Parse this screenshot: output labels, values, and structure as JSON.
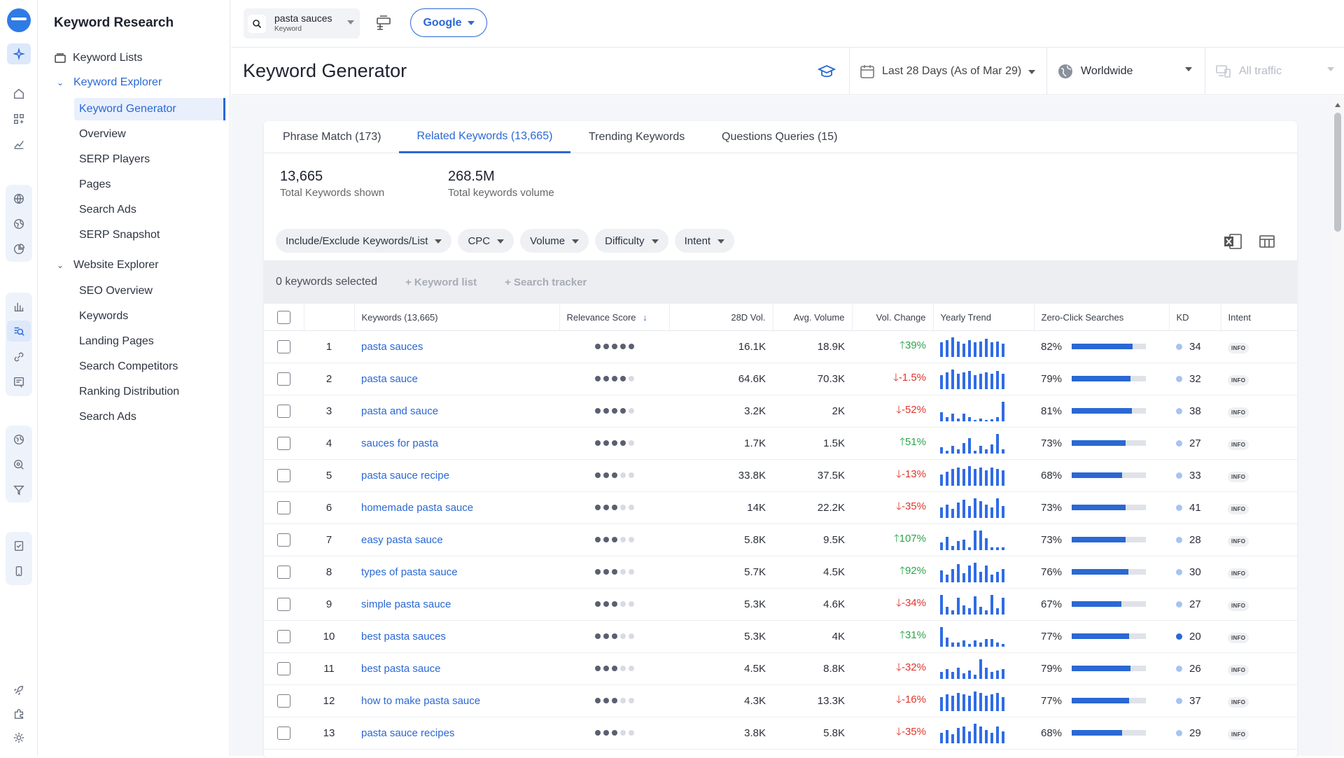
{
  "search": {
    "value": "pasta sauces",
    "label": "Keyword"
  },
  "engine": "Google",
  "sidebar": {
    "title": "Keyword Research",
    "keyword_lists": "Keyword Lists",
    "keyword_explorer": "Keyword Explorer",
    "kw_items": [
      "Keyword Generator",
      "Overview",
      "SERP Players",
      "Pages",
      "Search Ads",
      "SERP Snapshot"
    ],
    "website_explorer": "Website Explorer",
    "web_items": [
      "SEO Overview",
      "Keywords",
      "Landing Pages",
      "Search Competitors",
      "Ranking Distribution",
      "Search Ads"
    ]
  },
  "header": {
    "title": "Keyword Generator",
    "date": "Last 28 Days (As of Mar 29)",
    "region": "Worldwide",
    "traffic": "All traffic"
  },
  "tabs": [
    "Phrase Match (173)",
    "Related Keywords (13,665)",
    "Trending Keywords",
    "Questions Queries (15)"
  ],
  "stats": [
    {
      "value": "13,665",
      "label": "Total Keywords shown"
    },
    {
      "value": "268.5M",
      "label": "Total keywords volume"
    }
  ],
  "filters": [
    "Include/Exclude Keywords/List",
    "CPC",
    "Volume",
    "Difficulty",
    "Intent"
  ],
  "selection": {
    "count": "0 keywords selected",
    "keyword_list": "Keyword list",
    "search_tracker": "Search tracker"
  },
  "columns": [
    "Keywords (13,665)",
    "Relevance Score",
    "28D Vol.",
    "Avg. Volume",
    "Vol. Change",
    "Yearly Trend",
    "Zero-Click Searches",
    "KD",
    "Intent"
  ],
  "rows": [
    {
      "n": "1",
      "kw": "pasta sauces",
      "rel": 5,
      "v28": "16.1K",
      "avg": "18.9K",
      "chg": "39%",
      "dir": "up",
      "trend": [
        22,
        26,
        30,
        24,
        20,
        26,
        22,
        24,
        28,
        22,
        24,
        20
      ],
      "zc": "82%",
      "zcv": 0.82,
      "kd": "34",
      "intent": "INFO"
    },
    {
      "n": "2",
      "kw": "pasta sauce",
      "rel": 4,
      "v28": "64.6K",
      "avg": "70.3K",
      "chg": "-1.5%",
      "dir": "dn",
      "trend": [
        20,
        24,
        28,
        22,
        24,
        26,
        20,
        22,
        24,
        22,
        26,
        22
      ],
      "zc": "79%",
      "zcv": 0.79,
      "kd": "32",
      "intent": "INFO"
    },
    {
      "n": "3",
      "kw": "pasta and sauce",
      "rel": 4,
      "v28": "3.2K",
      "avg": "2K",
      "chg": "-52%",
      "dir": "dn",
      "trend": [
        12,
        6,
        10,
        4,
        10,
        6,
        2,
        4,
        2,
        3,
        6,
        26
      ],
      "zc": "81%",
      "zcv": 0.81,
      "kd": "38",
      "intent": "INFO"
    },
    {
      "n": "4",
      "kw": "sauces for pasta",
      "rel": 4,
      "v28": "1.7K",
      "avg": "1.5K",
      "chg": "51%",
      "dir": "up",
      "trend": [
        8,
        4,
        10,
        6,
        14,
        20,
        4,
        10,
        6,
        12,
        26,
        6
      ],
      "zc": "73%",
      "zcv": 0.73,
      "kd": "27",
      "intent": "INFO"
    },
    {
      "n": "5",
      "kw": "pasta sauce recipe",
      "rel": 3,
      "v28": "33.8K",
      "avg": "37.5K",
      "chg": "-13%",
      "dir": "dn",
      "trend": [
        16,
        20,
        24,
        26,
        24,
        28,
        24,
        26,
        22,
        26,
        24,
        22
      ],
      "zc": "68%",
      "zcv": 0.68,
      "kd": "33",
      "intent": "INFO"
    },
    {
      "n": "6",
      "kw": "homemade pasta sauce",
      "rel": 3,
      "v28": "14K",
      "avg": "22.2K",
      "chg": "-35%",
      "dir": "dn",
      "trend": [
        14,
        18,
        12,
        20,
        24,
        16,
        26,
        22,
        18,
        14,
        26,
        16
      ],
      "zc": "73%",
      "zcv": 0.73,
      "kd": "41",
      "intent": "INFO"
    },
    {
      "n": "7",
      "kw": "easy pasta sauce",
      "rel": 3,
      "v28": "5.8K",
      "avg": "9.5K",
      "chg": "107%",
      "dir": "up",
      "trend": [
        10,
        18,
        6,
        12,
        14,
        4,
        26,
        26,
        16,
        4,
        4,
        4
      ],
      "zc": "73%",
      "zcv": 0.73,
      "kd": "28",
      "intent": "INFO"
    },
    {
      "n": "8",
      "kw": "types of pasta sauce",
      "rel": 3,
      "v28": "5.7K",
      "avg": "4.5K",
      "chg": "92%",
      "dir": "up",
      "trend": [
        16,
        10,
        18,
        24,
        12,
        22,
        26,
        14,
        22,
        10,
        14,
        18
      ],
      "zc": "76%",
      "zcv": 0.76,
      "kd": "30",
      "intent": "INFO"
    },
    {
      "n": "9",
      "kw": "simple pasta sauce",
      "rel": 3,
      "v28": "5.3K",
      "avg": "4.6K",
      "chg": "-34%",
      "dir": "dn",
      "trend": [
        26,
        10,
        6,
        22,
        12,
        8,
        24,
        10,
        6,
        26,
        8,
        22
      ],
      "zc": "67%",
      "zcv": 0.67,
      "kd": "27",
      "intent": "INFO"
    },
    {
      "n": "10",
      "kw": "best pasta sauces",
      "rel": 3,
      "v28": "5.3K",
      "avg": "4K",
      "chg": "31%",
      "dir": "up",
      "trend": [
        26,
        12,
        6,
        6,
        8,
        4,
        8,
        6,
        10,
        10,
        6,
        4
      ],
      "zc": "77%",
      "zcv": 0.77,
      "kd": "20",
      "intent": "INFO",
      "kd_strong": true
    },
    {
      "n": "11",
      "kw": "best pasta sauce",
      "rel": 3,
      "v28": "4.5K",
      "avg": "8.8K",
      "chg": "-32%",
      "dir": "dn",
      "trend": [
        10,
        14,
        10,
        16,
        8,
        12,
        6,
        28,
        16,
        10,
        12,
        14
      ],
      "zc": "79%",
      "zcv": 0.79,
      "kd": "26",
      "intent": "INFO"
    },
    {
      "n": "12",
      "kw": "how to make pasta sauce",
      "rel": 3,
      "v28": "4.3K",
      "avg": "13.3K",
      "chg": "-16%",
      "dir": "dn",
      "trend": [
        20,
        24,
        22,
        26,
        24,
        22,
        28,
        26,
        22,
        24,
        26,
        20
      ],
      "zc": "77%",
      "zcv": 0.77,
      "kd": "37",
      "intent": "INFO"
    },
    {
      "n": "13",
      "kw": "pasta sauce recipes",
      "rel": 3,
      "v28": "3.8K",
      "avg": "5.8K",
      "chg": "-35%",
      "dir": "dn",
      "trend": [
        14,
        18,
        12,
        20,
        22,
        16,
        26,
        22,
        18,
        14,
        22,
        16
      ],
      "zc": "68%",
      "zcv": 0.68,
      "kd": "29",
      "intent": "INFO"
    }
  ]
}
